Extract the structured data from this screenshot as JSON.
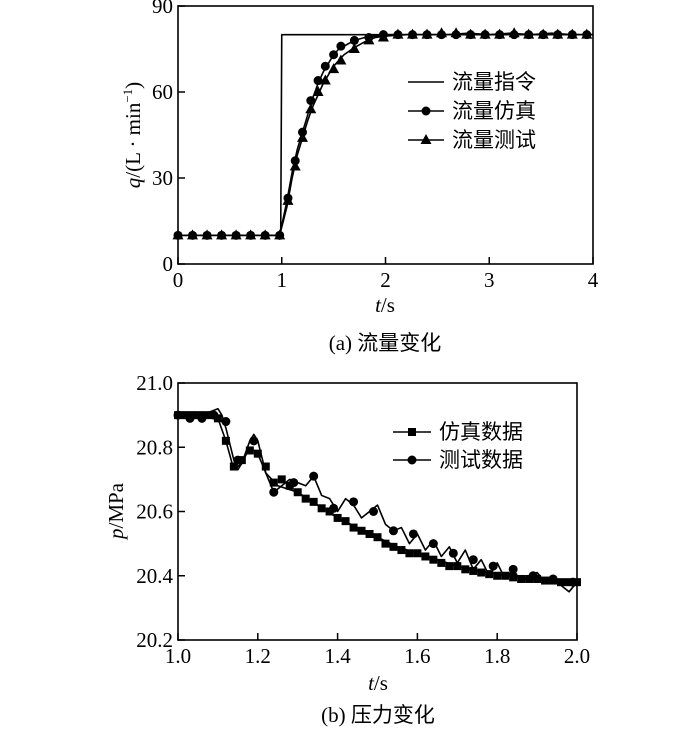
{
  "chart_data": [
    {
      "type": "line",
      "caption": "(a) 流量变化",
      "xlabel_var": "t",
      "xlabel_unit": "/s",
      "ylabel_var": "q",
      "ylabel_unit": "/(L · min",
      "ylabel_sup": "−1",
      "ylabel_close": ")",
      "xlim": [
        0,
        4
      ],
      "ylim": [
        0,
        90
      ],
      "xticks": [
        0,
        1,
        2,
        3,
        4
      ],
      "yticks": [
        0,
        30,
        60,
        90
      ],
      "legend_position": "right",
      "series": [
        {
          "name": "流量指令",
          "marker": "none",
          "x": [
            0,
            0.99,
            1.0,
            4.0
          ],
          "y": [
            10,
            10,
            80,
            80
          ]
        },
        {
          "name": "流量仿真",
          "marker": "circle",
          "x": [
            0,
            0.14,
            0.28,
            0.42,
            0.56,
            0.7,
            0.84,
            0.98,
            1.05,
            1.1,
            1.15,
            1.2,
            1.25,
            1.3,
            1.35,
            1.4,
            1.45,
            1.5,
            1.55,
            1.6,
            1.7,
            1.8,
            1.9,
            2.0,
            2.2,
            2.4,
            2.6,
            2.8,
            3.0,
            3.2,
            3.4,
            3.6,
            3.8,
            4.0
          ],
          "y": [
            10,
            10,
            10,
            10,
            10,
            10,
            10,
            10,
            22,
            32,
            40,
            46,
            52,
            58,
            63,
            67,
            70,
            73,
            75,
            76,
            78,
            79,
            79.5,
            80,
            80,
            80,
            80,
            80,
            80,
            80,
            80,
            80,
            80,
            80
          ],
          "marker_x": [
            0,
            0.14,
            0.28,
            0.42,
            0.56,
            0.7,
            0.84,
            0.98,
            1.06,
            1.13,
            1.2,
            1.28,
            1.35,
            1.42,
            1.5,
            1.57,
            1.7,
            1.84,
            1.98,
            2.12,
            2.26,
            2.4,
            2.54,
            2.68,
            2.82,
            2.96,
            3.1,
            3.24,
            3.38,
            3.52,
            3.66,
            3.8,
            3.94
          ],
          "marker_y": [
            10,
            10,
            10,
            10,
            10,
            10,
            10,
            10,
            23,
            36,
            46,
            57,
            64,
            69,
            73,
            76,
            78,
            79,
            80,
            80,
            80,
            80,
            80,
            80,
            80,
            80,
            80,
            80,
            80,
            80,
            80,
            80,
            80
          ]
        },
        {
          "name": "流量测试",
          "marker": "triangle",
          "x": [
            0,
            0.14,
            0.28,
            0.42,
            0.56,
            0.7,
            0.84,
            0.98,
            1.05,
            1.1,
            1.15,
            1.2,
            1.25,
            1.3,
            1.35,
            1.4,
            1.45,
            1.5,
            1.55,
            1.6,
            1.7,
            1.8,
            1.9,
            2.0,
            2.2,
            2.4,
            2.6,
            2.8,
            3.0,
            3.2,
            3.4,
            3.6,
            3.8,
            4.0
          ],
          "y": [
            10,
            10,
            10,
            10,
            10,
            10,
            10,
            10,
            20,
            30,
            38,
            44,
            50,
            55,
            59,
            63,
            66,
            69,
            71,
            73,
            75.5,
            77.5,
            79,
            79.5,
            80,
            80,
            80,
            80.5,
            80,
            80.5,
            80,
            80.5,
            80,
            80
          ],
          "marker_x": [
            0,
            0.14,
            0.28,
            0.42,
            0.56,
            0.7,
            0.84,
            0.98,
            1.06,
            1.13,
            1.2,
            1.28,
            1.35,
            1.42,
            1.5,
            1.57,
            1.7,
            1.84,
            1.98,
            2.12,
            2.26,
            2.4,
            2.54,
            2.68,
            2.82,
            2.96,
            3.1,
            3.24,
            3.38,
            3.52,
            3.66,
            3.8,
            3.94
          ],
          "marker_y": [
            10,
            10,
            10,
            10,
            10,
            10,
            10,
            10,
            22,
            34,
            44,
            54,
            60,
            64,
            68,
            71,
            75,
            78,
            79,
            80,
            80,
            80,
            80.5,
            80.5,
            80,
            80,
            80,
            80.5,
            80,
            80,
            80,
            80,
            80
          ]
        }
      ]
    },
    {
      "type": "line",
      "caption": "(b) 压力变化",
      "xlabel_var": "t",
      "xlabel_unit": "/s",
      "ylabel_var": "p",
      "ylabel_unit": "/MPa",
      "xlim": [
        1.0,
        2.0
      ],
      "ylim": [
        20.2,
        21.0
      ],
      "xticks": [
        1.0,
        1.2,
        1.4,
        1.6,
        1.8,
        2.0
      ],
      "yticks": [
        20.2,
        20.4,
        20.6,
        20.8,
        21.0
      ],
      "legend_position": "top-right",
      "series": [
        {
          "name": "仿真数据",
          "marker": "square",
          "x": [
            1.0,
            1.04,
            1.08,
            1.1,
            1.12,
            1.14,
            1.16,
            1.18,
            1.2,
            1.22,
            1.25,
            1.3,
            1.35,
            1.4,
            1.45,
            1.5,
            1.55,
            1.6,
            1.65,
            1.7,
            1.75,
            1.8,
            1.85,
            1.9,
            1.95,
            2.0
          ],
          "y": [
            20.9,
            20.9,
            20.9,
            20.89,
            20.82,
            20.73,
            20.75,
            20.8,
            20.78,
            20.72,
            20.68,
            20.66,
            20.62,
            20.58,
            20.55,
            20.52,
            20.49,
            20.47,
            20.45,
            20.43,
            20.415,
            20.405,
            20.395,
            20.39,
            20.385,
            20.38
          ],
          "marker_x": [
            1.0,
            1.02,
            1.04,
            1.06,
            1.08,
            1.1,
            1.12,
            1.14,
            1.16,
            1.18,
            1.2,
            1.22,
            1.24,
            1.26,
            1.28,
            1.3,
            1.32,
            1.34,
            1.36,
            1.38,
            1.4,
            1.42,
            1.44,
            1.46,
            1.48,
            1.5,
            1.52,
            1.54,
            1.56,
            1.58,
            1.6,
            1.62,
            1.64,
            1.66,
            1.68,
            1.7,
            1.72,
            1.74,
            1.76,
            1.78,
            1.8,
            1.82,
            1.84,
            1.86,
            1.88,
            1.9,
            1.92,
            1.94,
            1.96,
            1.98,
            2.0
          ],
          "marker_y": [
            20.9,
            20.9,
            20.9,
            20.9,
            20.9,
            20.89,
            20.82,
            20.74,
            20.76,
            20.79,
            20.78,
            20.74,
            20.69,
            20.7,
            20.68,
            20.66,
            20.64,
            20.63,
            20.61,
            20.6,
            20.58,
            20.57,
            20.55,
            20.54,
            20.53,
            20.52,
            20.5,
            20.49,
            20.48,
            20.47,
            20.47,
            20.46,
            20.45,
            20.44,
            20.43,
            20.43,
            20.42,
            20.415,
            20.41,
            20.405,
            20.4,
            20.4,
            20.395,
            20.39,
            20.39,
            20.39,
            20.385,
            20.385,
            20.38,
            20.38,
            20.38
          ]
        },
        {
          "name": "测试数据",
          "marker": "circle",
          "x": [
            1.0,
            1.03,
            1.06,
            1.08,
            1.1,
            1.11,
            1.12,
            1.14,
            1.15,
            1.16,
            1.18,
            1.19,
            1.2,
            1.22,
            1.24,
            1.26,
            1.28,
            1.3,
            1.32,
            1.34,
            1.36,
            1.38,
            1.4,
            1.42,
            1.44,
            1.46,
            1.48,
            1.5,
            1.52,
            1.54,
            1.56,
            1.58,
            1.6,
            1.62,
            1.64,
            1.66,
            1.68,
            1.7,
            1.72,
            1.74,
            1.76,
            1.78,
            1.8,
            1.82,
            1.84,
            1.86,
            1.88,
            1.9,
            1.92,
            1.94,
            1.96,
            1.98,
            2.0
          ],
          "y": [
            20.9,
            20.9,
            20.9,
            20.91,
            20.92,
            20.9,
            20.86,
            20.76,
            20.73,
            20.75,
            20.82,
            20.84,
            20.82,
            20.72,
            20.66,
            20.68,
            20.7,
            20.69,
            20.68,
            20.71,
            20.65,
            20.64,
            20.6,
            20.64,
            20.62,
            20.58,
            20.6,
            20.62,
            20.56,
            20.54,
            20.55,
            20.5,
            20.53,
            20.48,
            20.51,
            20.46,
            20.49,
            20.44,
            20.48,
            20.42,
            20.45,
            20.4,
            20.44,
            20.39,
            20.42,
            20.38,
            20.4,
            20.41,
            20.38,
            20.39,
            20.37,
            20.35,
            20.38
          ],
          "marker_x": [
            1.0,
            1.03,
            1.06,
            1.09,
            1.12,
            1.15,
            1.19,
            1.24,
            1.29,
            1.34,
            1.39,
            1.44,
            1.49,
            1.54,
            1.59,
            1.64,
            1.69,
            1.74,
            1.79,
            1.84,
            1.89,
            1.94,
            1.99
          ],
          "marker_y": [
            20.9,
            20.89,
            20.89,
            20.9,
            20.88,
            20.76,
            20.82,
            20.66,
            20.69,
            20.71,
            20.61,
            20.63,
            20.6,
            20.54,
            20.53,
            20.5,
            20.47,
            20.45,
            20.43,
            20.42,
            20.4,
            20.39,
            20.38
          ]
        }
      ]
    }
  ]
}
